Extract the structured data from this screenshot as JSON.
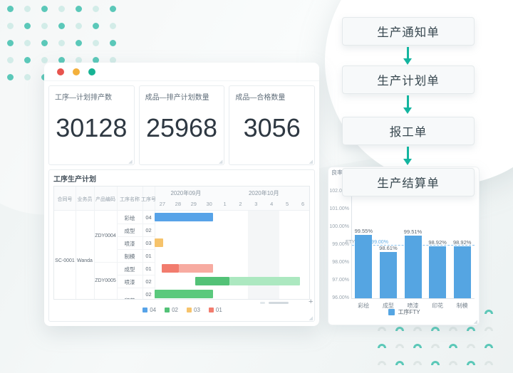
{
  "decor": {
    "dot_teal": "#3fc0ae",
    "dot_light": "#c3e7e1",
    "arch_teal": "#4cc4b2",
    "arch_gray": "#d9e2e1"
  },
  "window": {
    "traffic_lights": [
      "#e8544e",
      "#f3b03c",
      "#17b394"
    ],
    "kpis": [
      {
        "title": "工序—计划排产数",
        "value": "30128"
      },
      {
        "title": "成品—排产计划数量",
        "value": "25968"
      },
      {
        "title": "成品—合格数量",
        "value": "3056"
      }
    ],
    "scroll_plus": "+",
    "corner_mark": "◢"
  },
  "flow": {
    "steps": [
      "生产通知单",
      "生产计划单",
      "报工单",
      "生产结算单"
    ],
    "arrow_color": "#14b5a0"
  },
  "chart_data": [
    {
      "type": "gantt",
      "title": "工序生产计划",
      "columns": [
        "合同号",
        "业务员",
        "产品编码",
        "工序名称",
        "工序号"
      ],
      "contract_no": "SC-0001",
      "salesman": "Wanda",
      "months": [
        {
          "label": "2020年09月",
          "days": [
            "27",
            "28",
            "29",
            "30"
          ]
        },
        {
          "label": "2020年10月",
          "days": [
            "1",
            "2",
            "3",
            "4",
            "5",
            "6"
          ]
        }
      ],
      "shaded_days": [
        6,
        8
      ],
      "products": [
        {
          "code": "ZDY0004",
          "row_start": 0,
          "row_span": 4
        },
        {
          "code": "ZDY0005",
          "row_start": 4,
          "row_span": 3
        }
      ],
      "rows": [
        {
          "name": "彩绘",
          "no": "04",
          "segments": [
            {
              "start": 0,
              "end": 3.75,
              "color": "#57a3e8"
            }
          ]
        },
        {
          "name": "成型",
          "no": "02",
          "segments": []
        },
        {
          "name": "喷漆",
          "no": "03",
          "segments": [
            {
              "start": 0,
              "end": 0.55,
              "color": "#f6c36b"
            }
          ]
        },
        {
          "name": "制模",
          "no": "01",
          "segments": []
        },
        {
          "name": "成型",
          "no": "01",
          "segments": [
            {
              "start": 0.45,
              "end": 1.55,
              "color": "#f27c6e"
            },
            {
              "start": 1.55,
              "end": 3.75,
              "color": "#f7aba1"
            }
          ]
        },
        {
          "name": "喷漆",
          "no": "02",
          "segments": [
            {
              "start": 2.6,
              "end": 4.8,
              "color": "#53c277"
            },
            {
              "start": 4.8,
              "end": 9.3,
              "color": "#ace8c0"
            }
          ]
        },
        {
          "name": "",
          "no": "02",
          "segments": [
            {
              "start": 0,
              "end": 3.75,
              "color": "#5bc97d"
            }
          ]
        }
      ],
      "clipped_row_name": "印花",
      "legend": [
        {
          "label": "04",
          "color": "#57a3e8"
        },
        {
          "label": "02",
          "color": "#53c277"
        },
        {
          "label": "03",
          "color": "#f6c36b"
        },
        {
          "label": "01",
          "color": "#f27c6e"
        }
      ]
    },
    {
      "type": "bar",
      "ylabel": "良率",
      "categories": [
        "彩绘",
        "成型",
        "喷漆",
        "印花",
        "制模"
      ],
      "values": [
        99.55,
        98.61,
        99.51,
        98.92,
        98.92
      ],
      "value_labels": [
        "99.55%",
        "98.61%",
        "99.51%",
        "98.92%",
        "98.92%"
      ],
      "y_ticks": [
        "102.00%",
        "101.00%",
        "100.00%",
        "99.00%",
        "98.00%",
        "97.00%",
        "96.00%"
      ],
      "ylim": [
        96,
        102
      ],
      "grid": false,
      "bar_color": "#55a5e2",
      "target_line": {
        "value": 99,
        "label": "FTY目标线",
        "value_label": "99.00%"
      },
      "legend": "工序FTY"
    }
  ]
}
